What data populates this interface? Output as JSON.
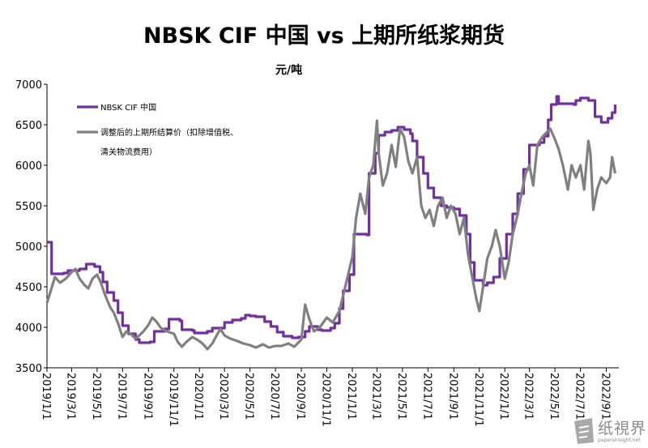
{
  "chart_data": {
    "type": "line",
    "title": "NBSK CIF 中国 vs 上期所纸浆期货",
    "unit_label": "元/吨",
    "ylim": [
      3500,
      7000
    ],
    "yticks": [
      3500,
      4000,
      4500,
      5000,
      5500,
      6000,
      6500,
      7000
    ],
    "xlim": [
      "2019-01-01",
      "2022-10-01"
    ],
    "xticks": [
      {
        "date": "2019-01-01",
        "label": "2019/1/1"
      },
      {
        "date": "2019-03-01",
        "label": "2019/3/1"
      },
      {
        "date": "2019-05-01",
        "label": "2019/5/1"
      },
      {
        "date": "2019-07-01",
        "label": "2019/7/1"
      },
      {
        "date": "2019-09-01",
        "label": "2019/9/1"
      },
      {
        "date": "2019-11-01",
        "label": "2019/11/1"
      },
      {
        "date": "2020-01-01",
        "label": "2020/1/1"
      },
      {
        "date": "2020-03-01",
        "label": "2020/3/1"
      },
      {
        "date": "2020-05-01",
        "label": "2020/5/1"
      },
      {
        "date": "2020-07-01",
        "label": "2020/7/1"
      },
      {
        "date": "2020-09-01",
        "label": "2020/9/1"
      },
      {
        "date": "2020-11-01",
        "label": "2020/11/1"
      },
      {
        "date": "2021-01-01",
        "label": "2021/1/1"
      },
      {
        "date": "2021-03-01",
        "label": "2021/3/1"
      },
      {
        "date": "2021-05-01",
        "label": "2021/5/1"
      },
      {
        "date": "2021-07-01",
        "label": "2021/7/1"
      },
      {
        "date": "2021-09-01",
        "label": "2021/9/1"
      },
      {
        "date": "2021-11-01",
        "label": "2021/11/1"
      },
      {
        "date": "2022-01-01",
        "label": "2022/1/1"
      },
      {
        "date": "2022-03-01",
        "label": "2022/3/1"
      },
      {
        "date": "2022-05-01",
        "label": "2022/5/1"
      },
      {
        "date": "2022-07-01",
        "label": "2022/7/1"
      },
      {
        "date": "2022-09-01",
        "label": "2022/9/1"
      }
    ],
    "grid": false,
    "legend_position": "top-left",
    "series": [
      {
        "name": "NBSK CIF 中国",
        "color": "#7030a0",
        "style": "step",
        "points": [
          [
            "2019-01-01",
            5050
          ],
          [
            "2019-01-10",
            5050
          ],
          [
            "2019-01-12",
            4660
          ],
          [
            "2019-02-10",
            4670
          ],
          [
            "2019-02-20",
            4700
          ],
          [
            "2019-03-20",
            4720
          ],
          [
            "2019-04-05",
            4780
          ],
          [
            "2019-04-25",
            4750
          ],
          [
            "2019-05-08",
            4680
          ],
          [
            "2019-05-15",
            4560
          ],
          [
            "2019-05-25",
            4430
          ],
          [
            "2019-06-10",
            4330
          ],
          [
            "2019-06-20",
            4180
          ],
          [
            "2019-07-01",
            4020
          ],
          [
            "2019-07-15",
            3920
          ],
          [
            "2019-08-01",
            3850
          ],
          [
            "2019-08-10",
            3810
          ],
          [
            "2019-09-05",
            3820
          ],
          [
            "2019-09-15",
            3950
          ],
          [
            "2019-10-10",
            3980
          ],
          [
            "2019-10-20",
            4100
          ],
          [
            "2019-11-15",
            4080
          ],
          [
            "2019-11-20",
            3970
          ],
          [
            "2019-12-15",
            3960
          ],
          [
            "2019-12-20",
            3930
          ],
          [
            "2020-01-20",
            3950
          ],
          [
            "2020-02-01",
            3990
          ],
          [
            "2020-03-01",
            4060
          ],
          [
            "2020-03-20",
            4090
          ],
          [
            "2020-04-10",
            4110
          ],
          [
            "2020-04-20",
            4150
          ],
          [
            "2020-05-01",
            4140
          ],
          [
            "2020-05-15",
            4130
          ],
          [
            "2020-06-05",
            4070
          ],
          [
            "2020-06-20",
            4010
          ],
          [
            "2020-07-05",
            3940
          ],
          [
            "2020-07-20",
            3890
          ],
          [
            "2020-08-10",
            3870
          ],
          [
            "2020-08-25",
            3880
          ],
          [
            "2020-09-10",
            3950
          ],
          [
            "2020-09-20",
            4010
          ],
          [
            "2020-10-10",
            3970
          ],
          [
            "2020-10-20",
            3960
          ],
          [
            "2020-11-10",
            3990
          ],
          [
            "2020-11-20",
            4050
          ],
          [
            "2020-12-01",
            4230
          ],
          [
            "2020-12-10",
            4450
          ],
          [
            "2020-12-25",
            4650
          ],
          [
            "2021-01-05",
            5150
          ],
          [
            "2021-02-05",
            5140
          ],
          [
            "2021-02-10",
            5900
          ],
          [
            "2021-02-25",
            6150
          ],
          [
            "2021-03-05",
            6370
          ],
          [
            "2021-03-20",
            6410
          ],
          [
            "2021-04-05",
            6430
          ],
          [
            "2021-04-20",
            6470
          ],
          [
            "2021-05-05",
            6440
          ],
          [
            "2021-05-20",
            6390
          ],
          [
            "2021-05-25",
            6300
          ],
          [
            "2021-06-05",
            6100
          ],
          [
            "2021-06-20",
            5900
          ],
          [
            "2021-07-01",
            5720
          ],
          [
            "2021-07-15",
            5600
          ],
          [
            "2021-08-01",
            5500
          ],
          [
            "2021-08-15",
            5480
          ],
          [
            "2021-09-01",
            5460
          ],
          [
            "2021-09-15",
            5380
          ],
          [
            "2021-10-01",
            5150
          ],
          [
            "2021-10-10",
            4800
          ],
          [
            "2021-10-20",
            4580
          ],
          [
            "2021-11-10",
            4520
          ],
          [
            "2021-11-20",
            4550
          ],
          [
            "2021-12-05",
            4620
          ],
          [
            "2021-12-20",
            4850
          ],
          [
            "2022-01-05",
            5150
          ],
          [
            "2022-01-20",
            5400
          ],
          [
            "2022-02-01",
            5650
          ],
          [
            "2022-02-15",
            5950
          ],
          [
            "2022-03-01",
            6250
          ],
          [
            "2022-03-25",
            6280
          ],
          [
            "2022-04-05",
            6360
          ],
          [
            "2022-04-15",
            6560
          ],
          [
            "2022-04-22",
            6750
          ],
          [
            "2022-05-05",
            6850
          ],
          [
            "2022-05-10",
            6760
          ],
          [
            "2022-06-15",
            6750
          ],
          [
            "2022-06-20",
            6800
          ],
          [
            "2022-07-01",
            6830
          ],
          [
            "2022-07-20",
            6800
          ],
          [
            "2022-08-05",
            6600
          ],
          [
            "2022-08-20",
            6530
          ],
          [
            "2022-09-05",
            6580
          ],
          [
            "2022-09-15",
            6650
          ],
          [
            "2022-09-22",
            6750
          ]
        ]
      },
      {
        "name": "调整后的上期所结算价（扣除增值税、清关物流费用）",
        "color": "#808080",
        "style": "line",
        "points": [
          [
            "2019-01-01",
            4300
          ],
          [
            "2019-01-10",
            4450
          ],
          [
            "2019-01-20",
            4620
          ],
          [
            "2019-02-01",
            4550
          ],
          [
            "2019-02-15",
            4600
          ],
          [
            "2019-03-01",
            4680
          ],
          [
            "2019-03-10",
            4720
          ],
          [
            "2019-03-20",
            4600
          ],
          [
            "2019-04-01",
            4520
          ],
          [
            "2019-04-10",
            4480
          ],
          [
            "2019-04-20",
            4600
          ],
          [
            "2019-05-01",
            4650
          ],
          [
            "2019-05-10",
            4550
          ],
          [
            "2019-05-20",
            4400
          ],
          [
            "2019-06-01",
            4250
          ],
          [
            "2019-06-10",
            4180
          ],
          [
            "2019-06-20",
            4050
          ],
          [
            "2019-07-01",
            3880
          ],
          [
            "2019-07-10",
            3950
          ],
          [
            "2019-07-20",
            3920
          ],
          [
            "2019-08-01",
            3860
          ],
          [
            "2019-08-10",
            3900
          ],
          [
            "2019-08-20",
            3950
          ],
          [
            "2019-09-01",
            4030
          ],
          [
            "2019-09-10",
            4120
          ],
          [
            "2019-09-20",
            4070
          ],
          [
            "2019-10-01",
            3990
          ],
          [
            "2019-10-15",
            3950
          ],
          [
            "2019-11-01",
            3920
          ],
          [
            "2019-11-10",
            3820
          ],
          [
            "2019-11-20",
            3760
          ],
          [
            "2019-12-01",
            3820
          ],
          [
            "2019-12-15",
            3880
          ],
          [
            "2020-01-01",
            3830
          ],
          [
            "2020-01-10",
            3790
          ],
          [
            "2020-01-20",
            3730
          ],
          [
            "2020-02-01",
            3800
          ],
          [
            "2020-02-10",
            3890
          ],
          [
            "2020-02-20",
            3980
          ],
          [
            "2020-03-01",
            3900
          ],
          [
            "2020-03-15",
            3860
          ],
          [
            "2020-04-01",
            3830
          ],
          [
            "2020-04-15",
            3800
          ],
          [
            "2020-05-01",
            3780
          ],
          [
            "2020-05-15",
            3750
          ],
          [
            "2020-06-01",
            3790
          ],
          [
            "2020-06-15",
            3750
          ],
          [
            "2020-07-01",
            3770
          ],
          [
            "2020-07-15",
            3770
          ],
          [
            "2020-08-01",
            3800
          ],
          [
            "2020-08-15",
            3760
          ],
          [
            "2020-09-01",
            3850
          ],
          [
            "2020-09-10",
            4280
          ],
          [
            "2020-09-20",
            4100
          ],
          [
            "2020-10-01",
            3950
          ],
          [
            "2020-10-15",
            4000
          ],
          [
            "2020-11-01",
            4120
          ],
          [
            "2020-11-15",
            4060
          ],
          [
            "2020-12-01",
            4200
          ],
          [
            "2020-12-15",
            4500
          ],
          [
            "2021-01-01",
            4870
          ],
          [
            "2021-01-10",
            5350
          ],
          [
            "2021-01-20",
            5650
          ],
          [
            "2021-02-01",
            5400
          ],
          [
            "2021-02-10",
            5850
          ],
          [
            "2021-02-20",
            6000
          ],
          [
            "2021-03-01",
            6550
          ],
          [
            "2021-03-05",
            6150
          ],
          [
            "2021-03-15",
            5750
          ],
          [
            "2021-03-25",
            5900
          ],
          [
            "2021-04-05",
            6250
          ],
          [
            "2021-04-15",
            5980
          ],
          [
            "2021-04-25",
            6450
          ],
          [
            "2021-05-05",
            6350
          ],
          [
            "2021-05-15",
            6050
          ],
          [
            "2021-05-25",
            5900
          ],
          [
            "2021-06-05",
            6100
          ],
          [
            "2021-06-15",
            5500
          ],
          [
            "2021-06-25",
            5350
          ],
          [
            "2021-07-05",
            5450
          ],
          [
            "2021-07-15",
            5250
          ],
          [
            "2021-07-25",
            5500
          ],
          [
            "2021-08-05",
            5600
          ],
          [
            "2021-08-15",
            5350
          ],
          [
            "2021-08-25",
            5500
          ],
          [
            "2021-09-05",
            5400
          ],
          [
            "2021-09-15",
            5150
          ],
          [
            "2021-09-25",
            5350
          ],
          [
            "2021-10-05",
            4900
          ],
          [
            "2021-10-15",
            4620
          ],
          [
            "2021-10-25",
            4350
          ],
          [
            "2021-11-01",
            4200
          ],
          [
            "2021-11-10",
            4500
          ],
          [
            "2021-11-20",
            4850
          ],
          [
            "2021-12-01",
            5000
          ],
          [
            "2021-12-10",
            5200
          ],
          [
            "2021-12-20",
            5000
          ],
          [
            "2022-01-01",
            4600
          ],
          [
            "2022-01-10",
            4800
          ],
          [
            "2022-01-20",
            5150
          ],
          [
            "2022-02-01",
            5400
          ],
          [
            "2022-02-10",
            5650
          ],
          [
            "2022-02-20",
            5900
          ],
          [
            "2022-03-01",
            6000
          ],
          [
            "2022-03-10",
            5750
          ],
          [
            "2022-03-20",
            6250
          ],
          [
            "2022-04-01",
            6350
          ],
          [
            "2022-04-10",
            6400
          ],
          [
            "2022-04-20",
            6450
          ],
          [
            "2022-05-01",
            6320
          ],
          [
            "2022-05-10",
            6200
          ],
          [
            "2022-05-20",
            6000
          ],
          [
            "2022-06-01",
            5700
          ],
          [
            "2022-06-10",
            6000
          ],
          [
            "2022-06-20",
            5850
          ],
          [
            "2022-07-01",
            6000
          ],
          [
            "2022-07-10",
            5700
          ],
          [
            "2022-07-20",
            6300
          ],
          [
            "2022-07-25",
            6150
          ],
          [
            "2022-08-01",
            5450
          ],
          [
            "2022-08-10",
            5700
          ],
          [
            "2022-08-20",
            5850
          ],
          [
            "2022-09-01",
            5780
          ],
          [
            "2022-09-10",
            5850
          ],
          [
            "2022-09-15",
            6100
          ],
          [
            "2022-09-22",
            5900
          ]
        ]
      }
    ]
  },
  "legend_lines": [
    [
      "NBSK CIF 中国"
    ],
    [
      "调整后的上期所结算价（扣除增值税、",
      "清关物流费用）"
    ]
  ],
  "watermark": {
    "text": "纸視界",
    "subtext": "papersinsight.net"
  }
}
